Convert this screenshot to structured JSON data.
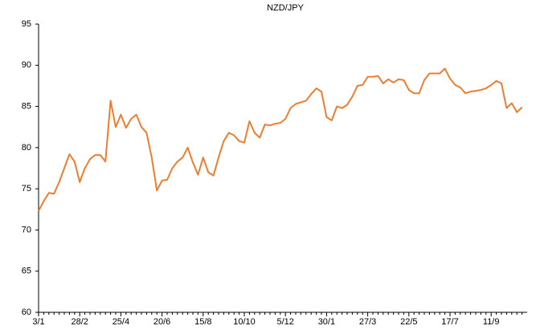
{
  "chart_data": {
    "type": "line",
    "title": "NZD/JPY",
    "categories": [
      "3/1",
      null,
      null,
      null,
      null,
      null,
      null,
      null,
      "28/2",
      null,
      null,
      null,
      null,
      null,
      null,
      null,
      "25/4",
      null,
      null,
      null,
      null,
      null,
      null,
      null,
      "20/6",
      null,
      null,
      null,
      null,
      null,
      null,
      null,
      "15/8",
      null,
      null,
      null,
      null,
      null,
      null,
      null,
      "10/10",
      null,
      null,
      null,
      null,
      null,
      null,
      null,
      "5/12",
      null,
      null,
      null,
      null,
      null,
      null,
      null,
      "30/1",
      null,
      null,
      null,
      null,
      null,
      null,
      null,
      "27/3",
      null,
      null,
      null,
      null,
      null,
      null,
      null,
      "22/5",
      null,
      null,
      null,
      null,
      null,
      null,
      null,
      "17/7",
      null,
      null,
      null,
      null,
      null,
      null,
      null,
      "11/9",
      null,
      null,
      null,
      null,
      null,
      null
    ],
    "series": [
      {
        "name": "NZD/JPY",
        "color": "#ef7d31",
        "values": [
          72.3,
          73.5,
          74.5,
          74.4,
          75.8,
          77.5,
          79.2,
          78.3,
          75.8,
          77.5,
          78.6,
          79.1,
          79.1,
          78.3,
          85.7,
          82.5,
          84.0,
          82.4,
          83.5,
          84.0,
          82.5,
          81.8,
          78.8,
          74.8,
          76.0,
          76.1,
          77.5,
          78.3,
          78.8,
          80.0,
          78.2,
          76.7,
          78.8,
          77.0,
          76.6,
          78.8,
          80.8,
          81.8,
          81.5,
          80.8,
          80.6,
          83.2,
          81.8,
          81.2,
          82.8,
          82.7,
          82.9,
          83.0,
          83.5,
          84.8,
          85.3,
          85.5,
          85.7,
          86.5,
          87.2,
          86.8,
          83.7,
          83.3,
          85.0,
          84.8,
          85.2,
          86.2,
          87.5,
          87.6,
          88.6,
          88.6,
          88.7,
          87.8,
          88.3,
          87.9,
          88.3,
          88.2,
          87.0,
          86.6,
          86.6,
          88.2,
          89.0,
          89.0,
          89.0,
          89.6,
          88.4,
          87.6,
          87.3,
          86.6,
          86.8,
          86.9,
          87.0,
          87.2,
          87.6,
          88.1,
          87.8,
          84.8,
          85.4,
          84.3,
          84.9
        ]
      }
    ],
    "ylim": [
      60,
      95
    ],
    "yticks": [
      60,
      65,
      70,
      75,
      80,
      85,
      90,
      95
    ],
    "grid": false
  }
}
